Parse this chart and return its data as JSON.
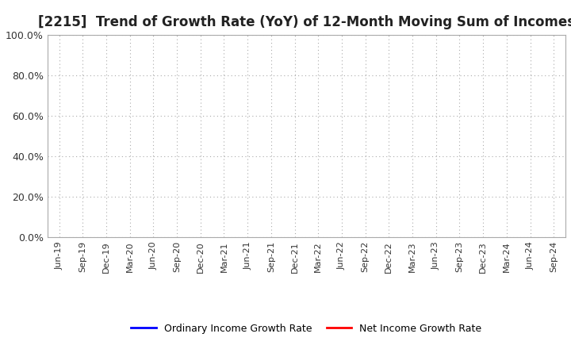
{
  "title": "[2215]  Trend of Growth Rate (YoY) of 12-Month Moving Sum of Incomes",
  "title_fontsize": 12,
  "title_color": "#222222",
  "ylim": [
    0.0,
    1.0
  ],
  "yticks": [
    0.0,
    0.2,
    0.4,
    0.6,
    0.8,
    1.0
  ],
  "ytick_labels": [
    "0.0%",
    "20.0%",
    "40.0%",
    "60.0%",
    "80.0%",
    "100.0%"
  ],
  "xtick_labels": [
    "Jun-19",
    "Sep-19",
    "Dec-19",
    "Mar-20",
    "Jun-20",
    "Sep-20",
    "Dec-20",
    "Mar-21",
    "Jun-21",
    "Sep-21",
    "Dec-21",
    "Mar-22",
    "Jun-22",
    "Sep-22",
    "Dec-22",
    "Mar-23",
    "Jun-23",
    "Sep-23",
    "Dec-23",
    "Mar-24",
    "Jun-24",
    "Sep-24"
  ],
  "ordinary_income_color": "#0000ff",
  "net_income_color": "#ff0000",
  "legend_ordinary": "Ordinary Income Growth Rate",
  "legend_net": "Net Income Growth Rate",
  "background_color": "#ffffff",
  "plot_bg_color": "#ffffff",
  "grid_color": "#aaaaaa",
  "figsize": [
    7.2,
    4.4
  ],
  "dpi": 100
}
